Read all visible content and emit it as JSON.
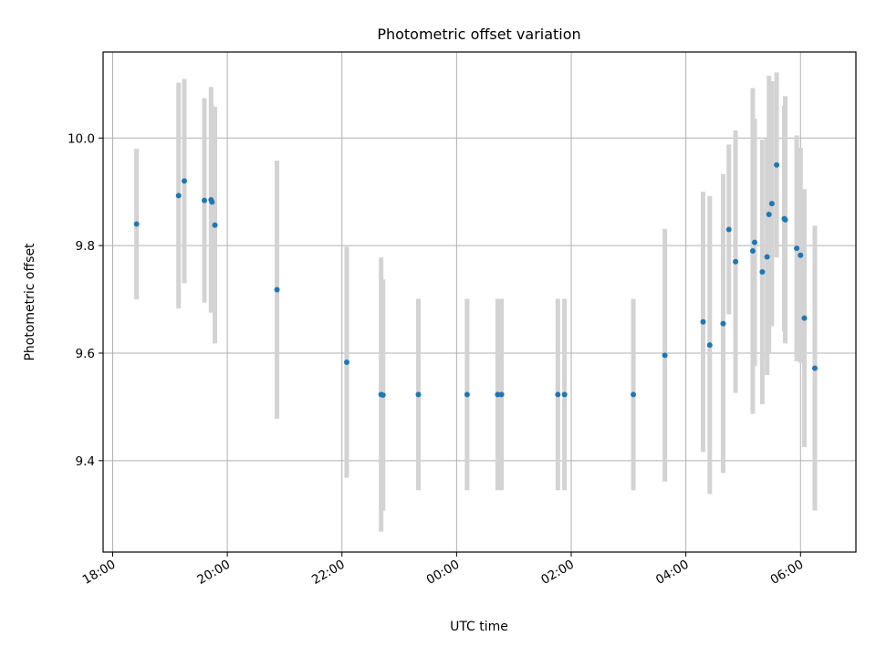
{
  "chart_data": {
    "type": "scatter",
    "title": "Photometric offset variation",
    "xlabel": "UTC time",
    "ylabel": "Photometric offset",
    "x_axis": "time",
    "x_ticks": [
      "18:00",
      "20:00",
      "22:00",
      "00:00",
      "02:00",
      "04:00",
      "06:00"
    ],
    "y_ticks": [
      "9.4",
      "9.6",
      "9.8",
      "10.0"
    ],
    "xlim": [
      "17:50",
      "06:58"
    ],
    "ylim": [
      9.23,
      10.16
    ],
    "grid": true,
    "marker_color": "#1f77b4",
    "errorbar_color": "#d3d3d3",
    "points": [
      {
        "x": "18:25",
        "y": 9.84,
        "err": 0.14
      },
      {
        "x": "19:09",
        "y": 9.893,
        "err": 0.21
      },
      {
        "x": "19:15",
        "y": 9.92,
        "err": 0.19
      },
      {
        "x": "19:36",
        "y": 9.884,
        "err": 0.19
      },
      {
        "x": "19:43",
        "y": 9.885,
        "err": 0.21
      },
      {
        "x": "19:44",
        "y": 9.881,
        "err": 0.18
      },
      {
        "x": "19:47",
        "y": 9.838,
        "err": 0.22
      },
      {
        "x": "20:52",
        "y": 9.718,
        "err": 0.24
      },
      {
        "x": "22:05",
        "y": 9.583,
        "err": 0.215
      },
      {
        "x": "22:41",
        "y": 9.523,
        "err": 0.255
      },
      {
        "x": "22:43",
        "y": 9.522,
        "err": 0.215
      },
      {
        "x": "23:20",
        "y": 9.523,
        "err": 0.178
      },
      {
        "x": "00:11",
        "y": 9.523,
        "err": 0.178
      },
      {
        "x": "00:43",
        "y": 9.523,
        "err": 0.178
      },
      {
        "x": "00:47",
        "y": 9.523,
        "err": 0.178
      },
      {
        "x": "01:46",
        "y": 9.523,
        "err": 0.178
      },
      {
        "x": "01:53",
        "y": 9.523,
        "err": 0.178
      },
      {
        "x": "03:05",
        "y": 9.523,
        "err": 0.178
      },
      {
        "x": "03:38",
        "y": 9.596,
        "err": 0.235
      },
      {
        "x": "04:18",
        "y": 9.658,
        "err": 0.242
      },
      {
        "x": "04:25",
        "y": 9.615,
        "err": 0.277
      },
      {
        "x": "04:39",
        "y": 9.655,
        "err": 0.278
      },
      {
        "x": "04:45",
        "y": 9.83,
        "err": 0.158
      },
      {
        "x": "04:52",
        "y": 9.77,
        "err": 0.244
      },
      {
        "x": "05:10",
        "y": 9.79,
        "err": 0.303
      },
      {
        "x": "05:12",
        "y": 9.806,
        "err": 0.23
      },
      {
        "x": "05:20",
        "y": 9.751,
        "err": 0.246
      },
      {
        "x": "05:25",
        "y": 9.779,
        "err": 0.22
      },
      {
        "x": "05:27",
        "y": 9.858,
        "err": 0.258
      },
      {
        "x": "05:30",
        "y": 9.878,
        "err": 0.228
      },
      {
        "x": "05:35",
        "y": 9.95,
        "err": 0.172
      },
      {
        "x": "05:43",
        "y": 9.85,
        "err": 0.21
      },
      {
        "x": "05:44",
        "y": 9.848,
        "err": 0.23
      },
      {
        "x": "05:56",
        "y": 9.795,
        "err": 0.21
      },
      {
        "x": "06:00",
        "y": 9.782,
        "err": 0.2
      },
      {
        "x": "06:04",
        "y": 9.665,
        "err": 0.24
      },
      {
        "x": "06:15",
        "y": 9.572,
        "err": 0.265
      }
    ]
  }
}
